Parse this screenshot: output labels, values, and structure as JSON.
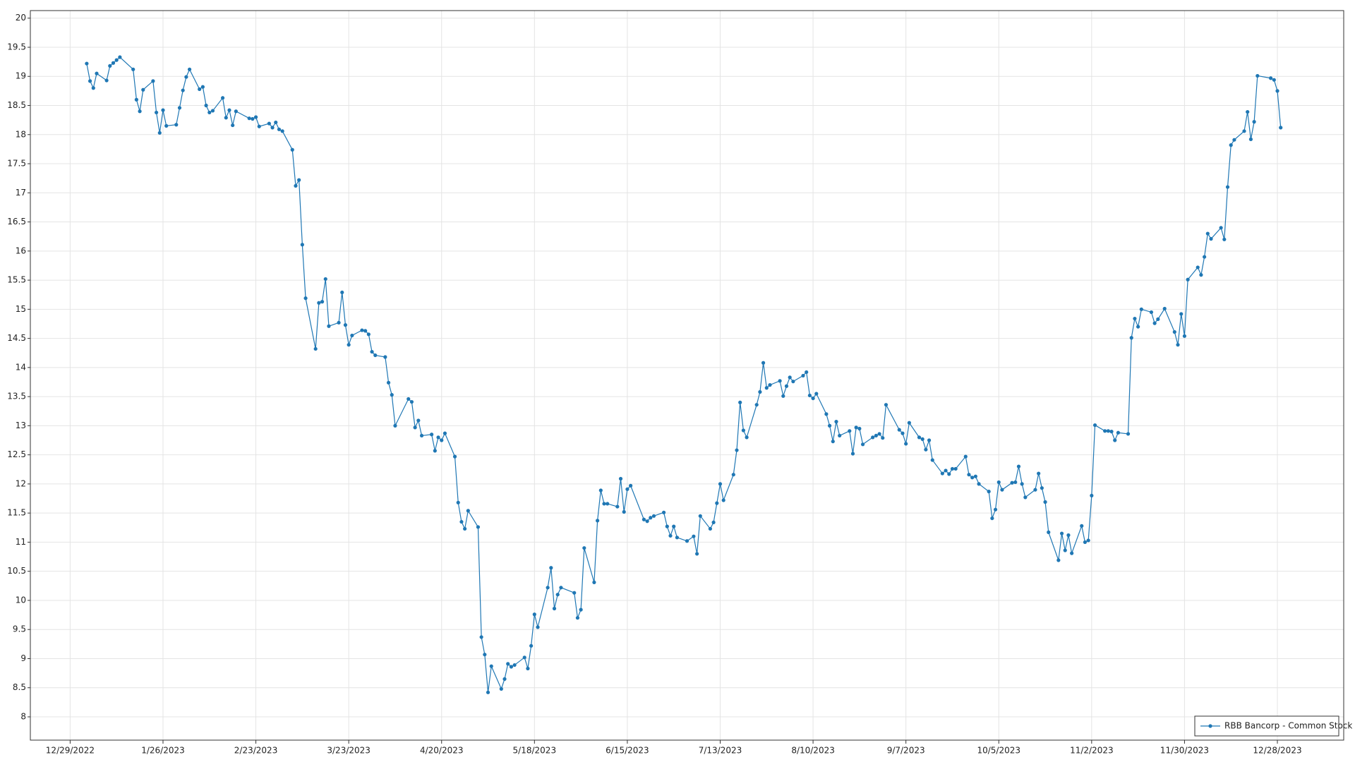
{
  "chart_data": {
    "type": "line",
    "x": [
      "1/3/2023",
      "1/4/2023",
      "1/5/2023",
      "1/6/2023",
      "1/9/2023",
      "1/10/2023",
      "1/11/2023",
      "1/12/2023",
      "1/13/2023",
      "1/17/2023",
      "1/18/2023",
      "1/19/2023",
      "1/20/2023",
      "1/23/2023",
      "1/24/2023",
      "1/25/2023",
      "1/26/2023",
      "1/27/2023",
      "1/30/2023",
      "1/31/2023",
      "2/1/2023",
      "2/2/2023",
      "2/3/2023",
      "2/6/2023",
      "2/7/2023",
      "2/8/2023",
      "2/9/2023",
      "2/10/2023",
      "2/13/2023",
      "2/14/2023",
      "2/15/2023",
      "2/16/2023",
      "2/17/2023",
      "2/21/2023",
      "2/22/2023",
      "2/23/2023",
      "2/24/2023",
      "2/27/2023",
      "2/28/2023",
      "3/1/2023",
      "3/2/2023",
      "3/3/2023",
      "3/6/2023",
      "3/7/2023",
      "3/8/2023",
      "3/9/2023",
      "3/10/2023",
      "3/13/2023",
      "3/14/2023",
      "3/15/2023",
      "3/16/2023",
      "3/17/2023",
      "3/20/2023",
      "3/21/2023",
      "3/22/2023",
      "3/23/2023",
      "3/24/2023",
      "3/27/2023",
      "3/28/2023",
      "3/29/2023",
      "3/30/2023",
      "3/31/2023",
      "4/3/2023",
      "4/4/2023",
      "4/5/2023",
      "4/6/2023",
      "4/10/2023",
      "4/11/2023",
      "4/12/2023",
      "4/13/2023",
      "4/14/2023",
      "4/17/2023",
      "4/18/2023",
      "4/19/2023",
      "4/20/2023",
      "4/21/2023",
      "4/24/2023",
      "4/25/2023",
      "4/26/2023",
      "4/27/2023",
      "4/28/2023",
      "5/1/2023",
      "5/2/2023",
      "5/3/2023",
      "5/4/2023",
      "5/5/2023",
      "5/8/2023",
      "5/9/2023",
      "5/10/2023",
      "5/11/2023",
      "5/12/2023",
      "5/15/2023",
      "5/16/2023",
      "5/17/2023",
      "5/18/2023",
      "5/19/2023",
      "5/22/2023",
      "5/23/2023",
      "5/24/2023",
      "5/25/2023",
      "5/26/2023",
      "5/30/2023",
      "5/31/2023",
      "6/1/2023",
      "6/2/2023",
      "6/5/2023",
      "6/6/2023",
      "6/7/2023",
      "6/8/2023",
      "6/9/2023",
      "6/12/2023",
      "6/13/2023",
      "6/14/2023",
      "6/15/2023",
      "6/16/2023",
      "6/20/2023",
      "6/21/2023",
      "6/22/2023",
      "6/23/2023",
      "6/26/2023",
      "6/27/2023",
      "6/28/2023",
      "6/29/2023",
      "6/30/2023",
      "7/3/2023",
      "7/5/2023",
      "7/6/2023",
      "7/7/2023",
      "7/10/2023",
      "7/11/2023",
      "7/12/2023",
      "7/13/2023",
      "7/14/2023",
      "7/17/2023",
      "7/18/2023",
      "7/19/2023",
      "7/20/2023",
      "7/21/2023",
      "7/24/2023",
      "7/25/2023",
      "7/26/2023",
      "7/27/2023",
      "7/28/2023",
      "7/31/2023",
      "8/1/2023",
      "8/2/2023",
      "8/3/2023",
      "8/4/2023",
      "8/7/2023",
      "8/8/2023",
      "8/9/2023",
      "8/10/2023",
      "8/11/2023",
      "8/14/2023",
      "8/15/2023",
      "8/16/2023",
      "8/17/2023",
      "8/18/2023",
      "8/21/2023",
      "8/22/2023",
      "8/23/2023",
      "8/24/2023",
      "8/25/2023",
      "8/28/2023",
      "8/29/2023",
      "8/30/2023",
      "8/31/2023",
      "9/1/2023",
      "9/5/2023",
      "9/6/2023",
      "9/7/2023",
      "9/8/2023",
      "9/11/2023",
      "9/12/2023",
      "9/13/2023",
      "9/14/2023",
      "9/15/2023",
      "9/18/2023",
      "9/19/2023",
      "9/20/2023",
      "9/21/2023",
      "9/22/2023",
      "9/25/2023",
      "9/26/2023",
      "9/27/2023",
      "9/28/2023",
      "9/29/2023",
      "10/2/2023",
      "10/3/2023",
      "10/4/2023",
      "10/5/2023",
      "10/6/2023",
      "10/9/2023",
      "10/10/2023",
      "10/11/2023",
      "10/12/2023",
      "10/13/2023",
      "10/16/2023",
      "10/17/2023",
      "10/18/2023",
      "10/19/2023",
      "10/20/2023",
      "10/23/2023",
      "10/24/2023",
      "10/25/2023",
      "10/26/2023",
      "10/27/2023",
      "10/30/2023",
      "10/31/2023",
      "11/1/2023",
      "11/2/2023",
      "11/3/2023",
      "11/6/2023",
      "11/7/2023",
      "11/8/2023",
      "11/9/2023",
      "11/10/2023",
      "11/13/2023",
      "11/14/2023",
      "11/15/2023",
      "11/16/2023",
      "11/17/2023",
      "11/20/2023",
      "11/21/2023",
      "11/22/2023",
      "11/24/2023",
      "11/27/2023",
      "11/28/2023",
      "11/29/2023",
      "11/30/2023",
      "12/1/2023",
      "12/4/2023",
      "12/5/2023",
      "12/6/2023",
      "12/7/2023",
      "12/8/2023",
      "12/11/2023",
      "12/12/2023",
      "12/13/2023",
      "12/14/2023",
      "12/15/2023",
      "12/18/2023",
      "12/19/2023",
      "12/20/2023",
      "12/21/2023",
      "12/22/2023",
      "12/26/2023",
      "12/27/2023",
      "12/28/2023",
      "12/29/2023"
    ],
    "series": [
      {
        "name": "RBB Bancorp - Common Stock",
        "color": "#1f77b4",
        "values": [
          19.22,
          18.92,
          18.8,
          19.05,
          18.93,
          19.18,
          19.23,
          19.28,
          19.33,
          19.12,
          18.6,
          18.4,
          18.77,
          18.92,
          18.38,
          18.03,
          18.42,
          18.15,
          18.17,
          18.46,
          18.76,
          18.99,
          19.12,
          18.78,
          18.82,
          18.5,
          18.38,
          18.41,
          18.63,
          18.29,
          18.42,
          18.16,
          18.4,
          18.28,
          18.27,
          18.3,
          18.14,
          18.19,
          18.12,
          18.21,
          18.09,
          18.06,
          17.74,
          17.12,
          17.22,
          16.11,
          15.19,
          14.32,
          15.11,
          15.13,
          15.52,
          14.71,
          14.77,
          15.29,
          14.73,
          14.39,
          14.55,
          14.64,
          14.63,
          14.57,
          14.27,
          14.21,
          14.18,
          13.74,
          13.53,
          13.0,
          13.46,
          13.41,
          12.97,
          13.09,
          12.83,
          12.85,
          12.57,
          12.8,
          12.75,
          12.87,
          12.47,
          11.68,
          11.35,
          11.23,
          11.54,
          11.26,
          9.37,
          9.07,
          8.42,
          8.87,
          8.48,
          8.65,
          8.91,
          8.86,
          8.89,
          9.02,
          8.83,
          9.22,
          9.76,
          9.54,
          10.22,
          10.56,
          9.86,
          10.1,
          10.22,
          10.13,
          9.7,
          9.84,
          10.9,
          10.31,
          11.37,
          11.89,
          11.66,
          11.66,
          11.61,
          12.09,
          11.52,
          11.91,
          11.97,
          11.39,
          11.36,
          11.42,
          11.45,
          11.51,
          11.27,
          11.11,
          11.27,
          11.08,
          11.02,
          11.1,
          10.8,
          11.45,
          11.23,
          11.34,
          11.67,
          12.0,
          11.72,
          12.16,
          12.58,
          13.4,
          12.92,
          12.8,
          13.36,
          13.58,
          14.08,
          13.65,
          13.7,
          13.77,
          13.51,
          13.68,
          13.83,
          13.76,
          13.86,
          13.92,
          13.52,
          13.47,
          13.55,
          13.2,
          13.0,
          12.73,
          13.07,
          12.83,
          12.91,
          12.52,
          12.97,
          12.95,
          12.68,
          12.8,
          12.83,
          12.86,
          12.79,
          13.36,
          12.93,
          12.87,
          12.69,
          13.05,
          12.8,
          12.77,
          12.59,
          12.75,
          12.41,
          12.18,
          12.23,
          12.17,
          12.26,
          12.26,
          12.47,
          12.16,
          12.11,
          12.13,
          12.0,
          11.87,
          11.41,
          11.56,
          12.03,
          11.9,
          12.02,
          12.03,
          12.3,
          12.0,
          11.77,
          11.9,
          12.18,
          11.93,
          11.69,
          11.17,
          10.69,
          11.15,
          10.86,
          11.12,
          10.81,
          11.28,
          11.0,
          11.03,
          11.8,
          13.01,
          12.91,
          12.91,
          12.9,
          12.75,
          12.88,
          12.86,
          14.51,
          14.84,
          14.7,
          15.0,
          14.95,
          14.76,
          14.83,
          15.01,
          14.61,
          14.39,
          14.92,
          14.54,
          15.51,
          15.72,
          15.59,
          15.9,
          16.3,
          16.21,
          16.4,
          16.2,
          17.1,
          17.82,
          17.91,
          18.06,
          18.39,
          17.92,
          18.22,
          19.01,
          18.97,
          18.94,
          18.75,
          18.12
        ]
      }
    ],
    "xlim": [
      "12/17/2022",
      "1/17/2024"
    ],
    "xticks": [
      "12/29/2022",
      "1/26/2023",
      "2/23/2023",
      "3/23/2023",
      "4/20/2023",
      "5/18/2023",
      "6/15/2023",
      "7/13/2023",
      "8/10/2023",
      "9/7/2023",
      "10/5/2023",
      "11/2/2023",
      "11/30/2023",
      "12/28/2023"
    ],
    "ylim": [
      7.6,
      20.13
    ],
    "yticks": [
      8,
      8.5,
      9,
      9.5,
      10,
      10.5,
      11,
      11.5,
      12,
      12.5,
      13,
      13.5,
      14,
      14.5,
      15,
      15.5,
      16,
      16.5,
      17,
      17.5,
      18,
      18.5,
      19,
      19.5,
      20
    ],
    "grid": true,
    "legend": "lower right"
  }
}
